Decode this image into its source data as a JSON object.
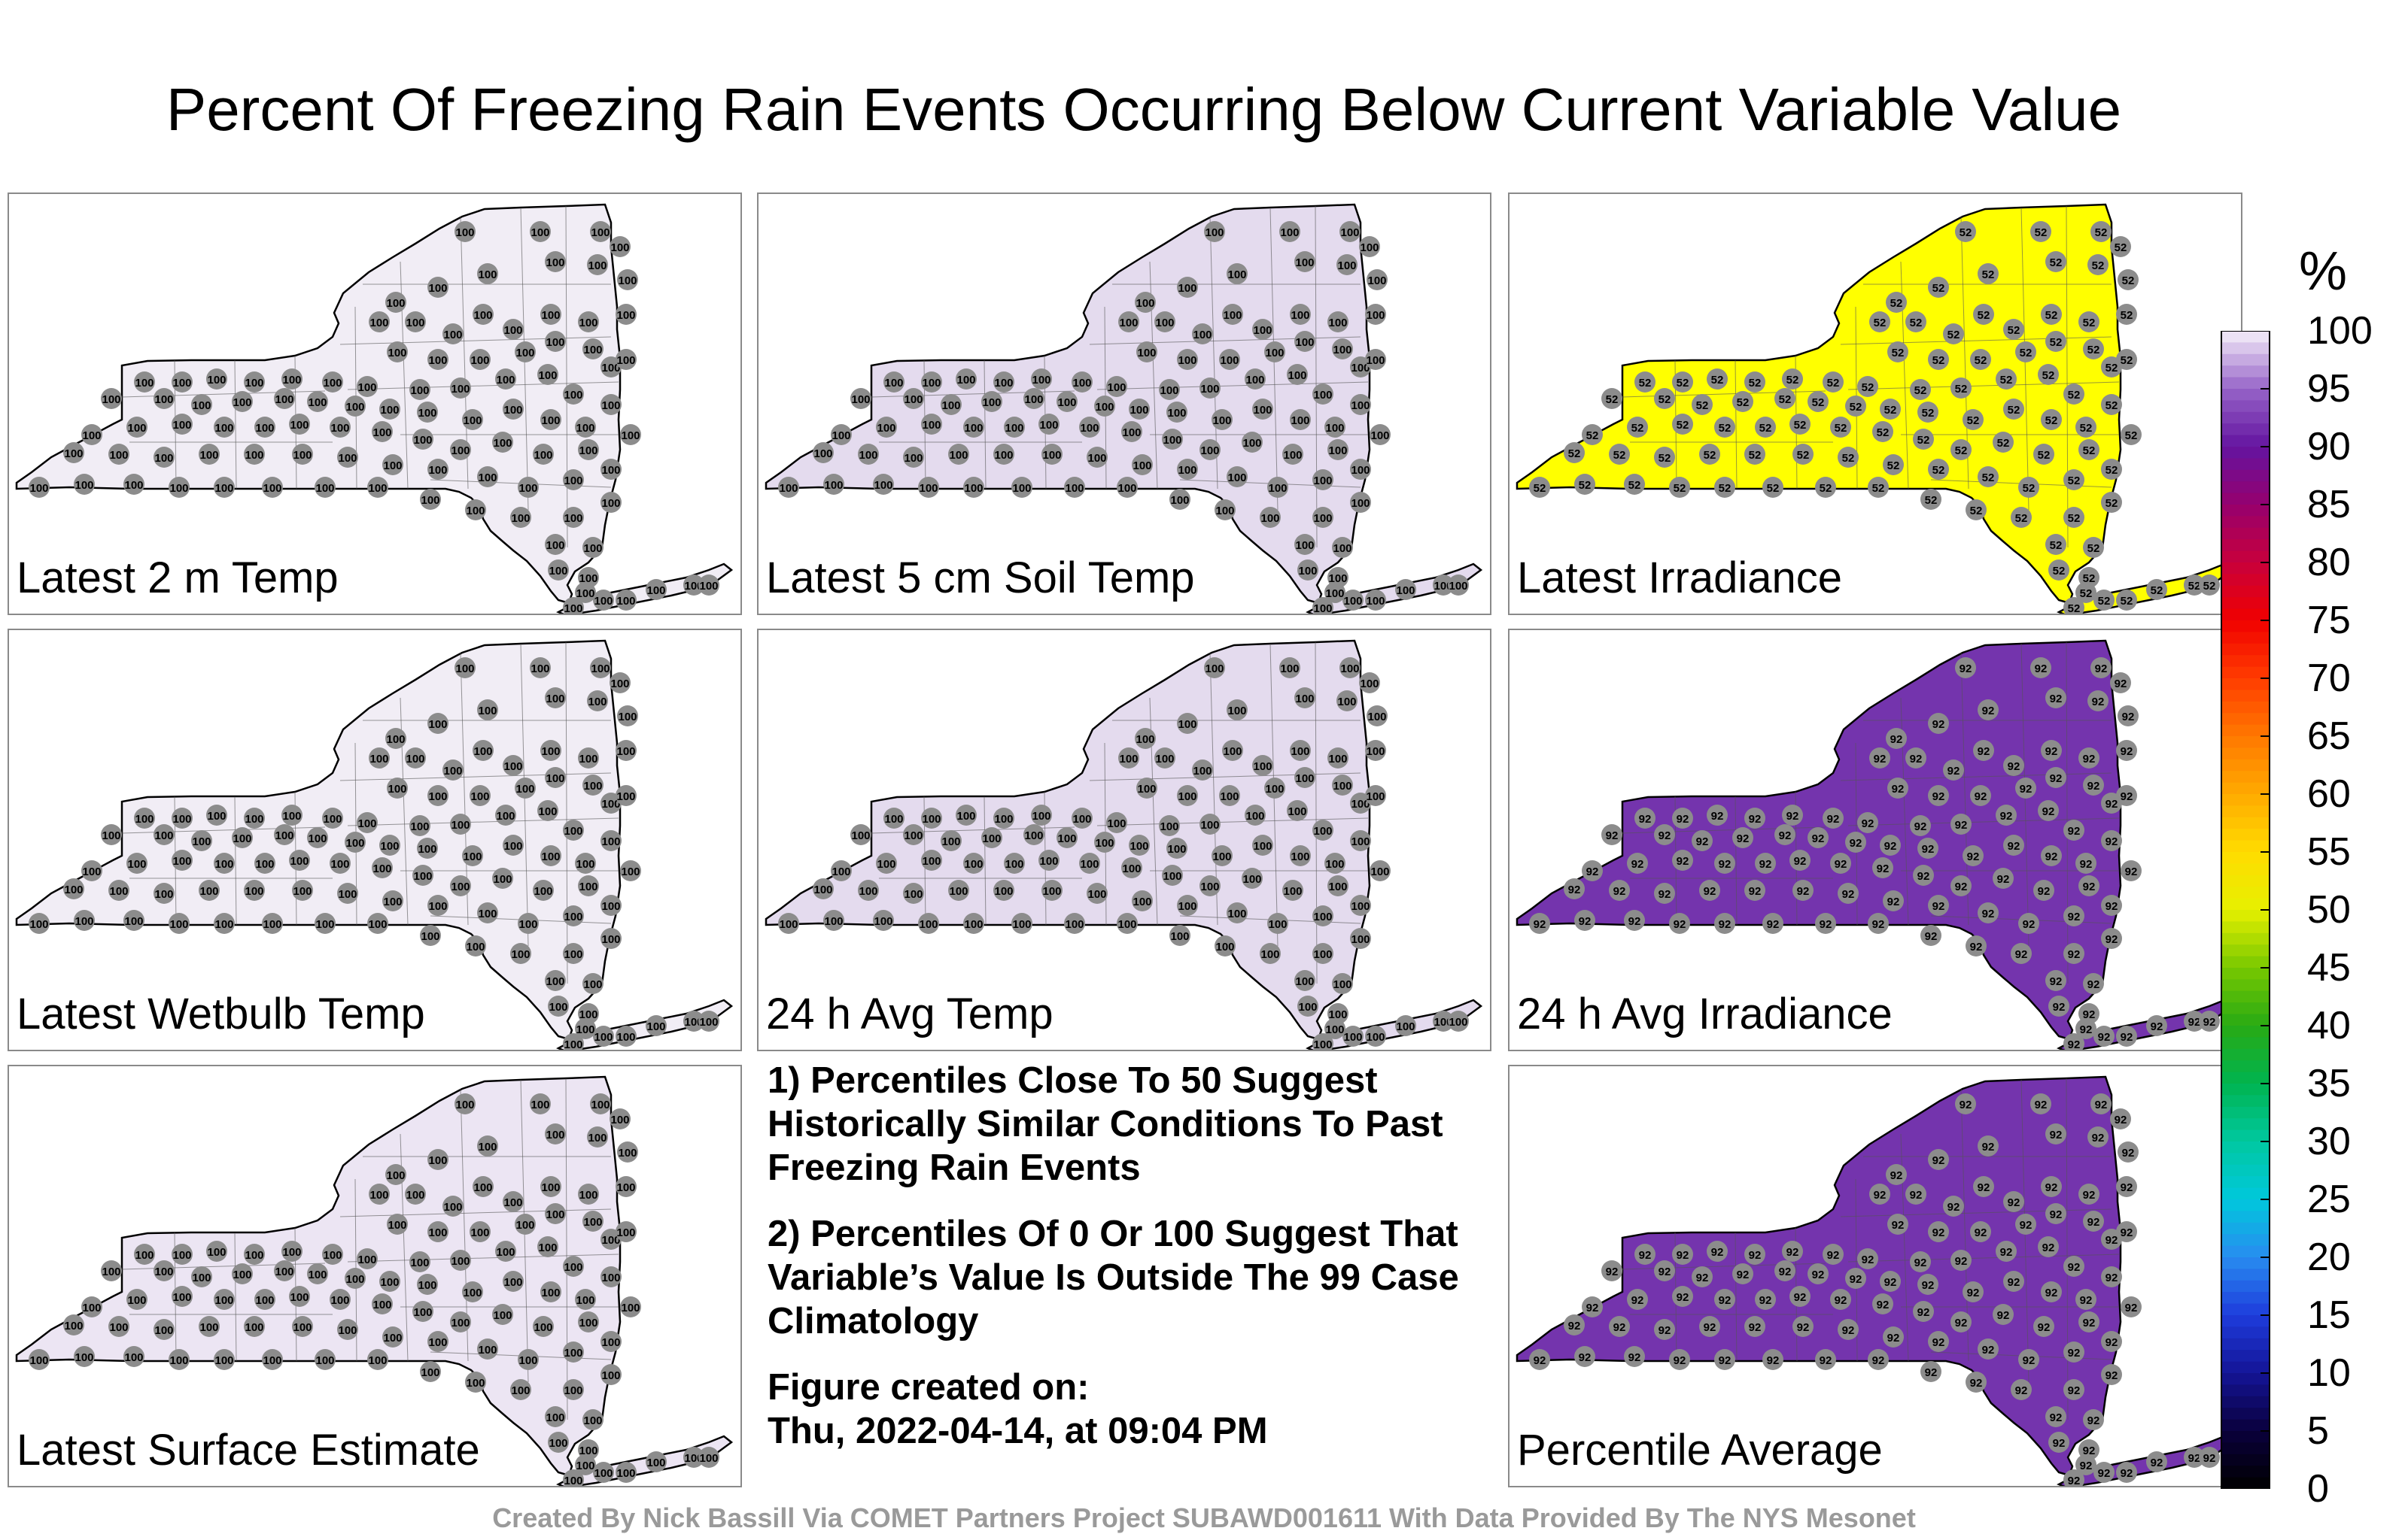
{
  "title": "Percent Of Freezing Rain Events Occurring Below Current Variable Value",
  "colorbar": {
    "unit": "%",
    "ticks": [
      100,
      95,
      90,
      85,
      80,
      75,
      70,
      65,
      60,
      55,
      50,
      45,
      40,
      35,
      30,
      25,
      20,
      15,
      10,
      5,
      0
    ]
  },
  "panels": [
    {
      "label": "Latest 2 m Temp",
      "fill": "#f1edf5",
      "station_value": "100"
    },
    {
      "label": "Latest 5 cm Soil Temp",
      "fill": "#e4dbee",
      "station_value": "100"
    },
    {
      "label": "Latest Irradiance",
      "fill": "#ffff00",
      "station_value": "52"
    },
    {
      "label": "Latest Wetbulb Temp",
      "fill": "#f1edf5",
      "station_value": "100"
    },
    {
      "label": "24 h Avg Temp",
      "fill": "#e4dbee",
      "station_value": "100"
    },
    {
      "label": "24 h Avg Irradiance",
      "fill": "#7434ad",
      "station_value": "92"
    },
    {
      "label": "Latest Surface Estimate",
      "fill": "#ece5f3",
      "station_value": "100"
    },
    {
      "label": "Percentile Average",
      "fill": "#7434ad",
      "station_value": "92"
    }
  ],
  "notes": {
    "note1": "1) Percentiles Close To 50 Suggest Historically Similar Conditions To Past Freezing Rain Events",
    "note2": "2) Percentiles Of 0 Or 100 Suggest That Variable’s Value Is Outside The 99 Case Climatology",
    "created_label": "Figure created on:",
    "created_value": "Thu, 2022-04-14, at 09:04 PM"
  },
  "credit": "Created By Nick Bassill Via COMET Partners Project SUBAWD001611 With Data Provided By The NYS Mesonet"
}
